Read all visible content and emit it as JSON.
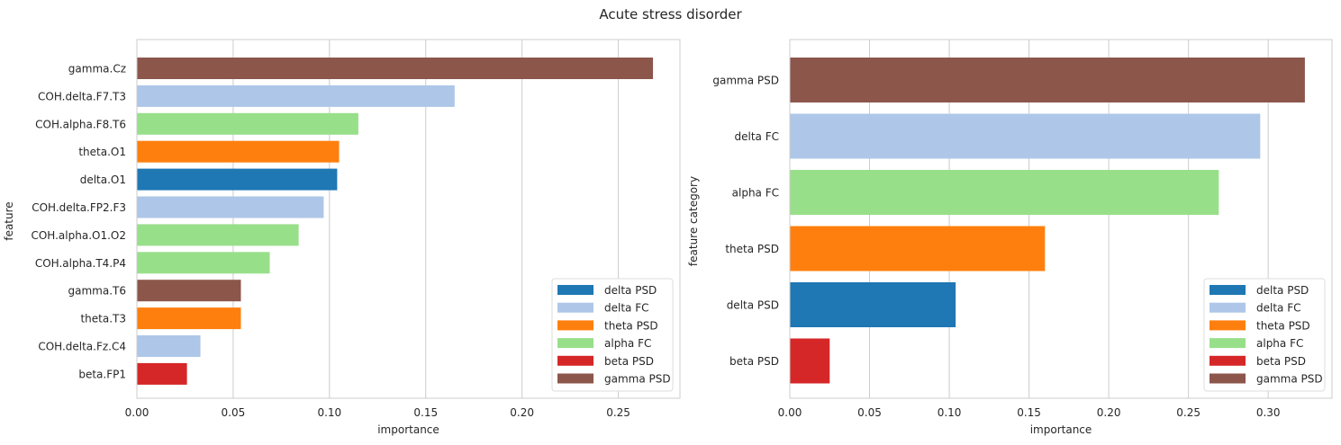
{
  "figure": {
    "title": "Acute stress disorder"
  },
  "colors": {
    "delta PSD": "#1f77b4",
    "delta FC": "#aec7e8",
    "theta PSD": "#ff7f0e",
    "alpha FC": "#98df8a",
    "beta PSD": "#d62728",
    "gamma PSD": "#8c564b"
  },
  "chart_data": [
    {
      "type": "bar",
      "orientation": "horizontal",
      "xlabel": "importance",
      "ylabel": "feature",
      "xlim": [
        0.0,
        0.282
      ],
      "xticks": [
        "0.00",
        "0.05",
        "0.10",
        "0.15",
        "0.20",
        "0.25"
      ],
      "grid": true,
      "legend_position": "lower-right",
      "legend": [
        "delta PSD",
        "delta FC",
        "theta PSD",
        "alpha FC",
        "beta PSD",
        "gamma PSD"
      ],
      "categories": [
        "gamma.Cz",
        "COH.delta.F7.T3",
        "COH.alpha.F8.T6",
        "theta.O1",
        "delta.O1",
        "COH.delta.FP2.F3",
        "COH.alpha.O1.O2",
        "COH.alpha.T4.P4",
        "gamma.T6",
        "theta.T3",
        "COH.delta.Fz.C4",
        "beta.FP1"
      ],
      "values": [
        0.268,
        0.165,
        0.115,
        0.105,
        0.104,
        0.097,
        0.084,
        0.069,
        0.054,
        0.054,
        0.033,
        0.026
      ],
      "groups": [
        "gamma PSD",
        "delta FC",
        "alpha FC",
        "theta PSD",
        "delta PSD",
        "delta FC",
        "alpha FC",
        "alpha FC",
        "gamma PSD",
        "theta PSD",
        "delta FC",
        "beta PSD"
      ]
    },
    {
      "type": "bar",
      "orientation": "horizontal",
      "xlabel": "importance",
      "ylabel": "feature category",
      "xlim": [
        0.0,
        0.34
      ],
      "xticks": [
        "0.00",
        "0.05",
        "0.10",
        "0.15",
        "0.20",
        "0.25",
        "0.30"
      ],
      "grid": true,
      "legend_position": "lower-right",
      "legend": [
        "delta PSD",
        "delta FC",
        "theta PSD",
        "alpha FC",
        "beta PSD",
        "gamma PSD"
      ],
      "categories": [
        "gamma PSD",
        "delta FC",
        "alpha FC",
        "theta PSD",
        "delta PSD",
        "beta PSD"
      ],
      "values": [
        0.323,
        0.295,
        0.269,
        0.16,
        0.104,
        0.025
      ],
      "groups": [
        "gamma PSD",
        "delta FC",
        "alpha FC",
        "theta PSD",
        "delta PSD",
        "beta PSD"
      ]
    }
  ]
}
